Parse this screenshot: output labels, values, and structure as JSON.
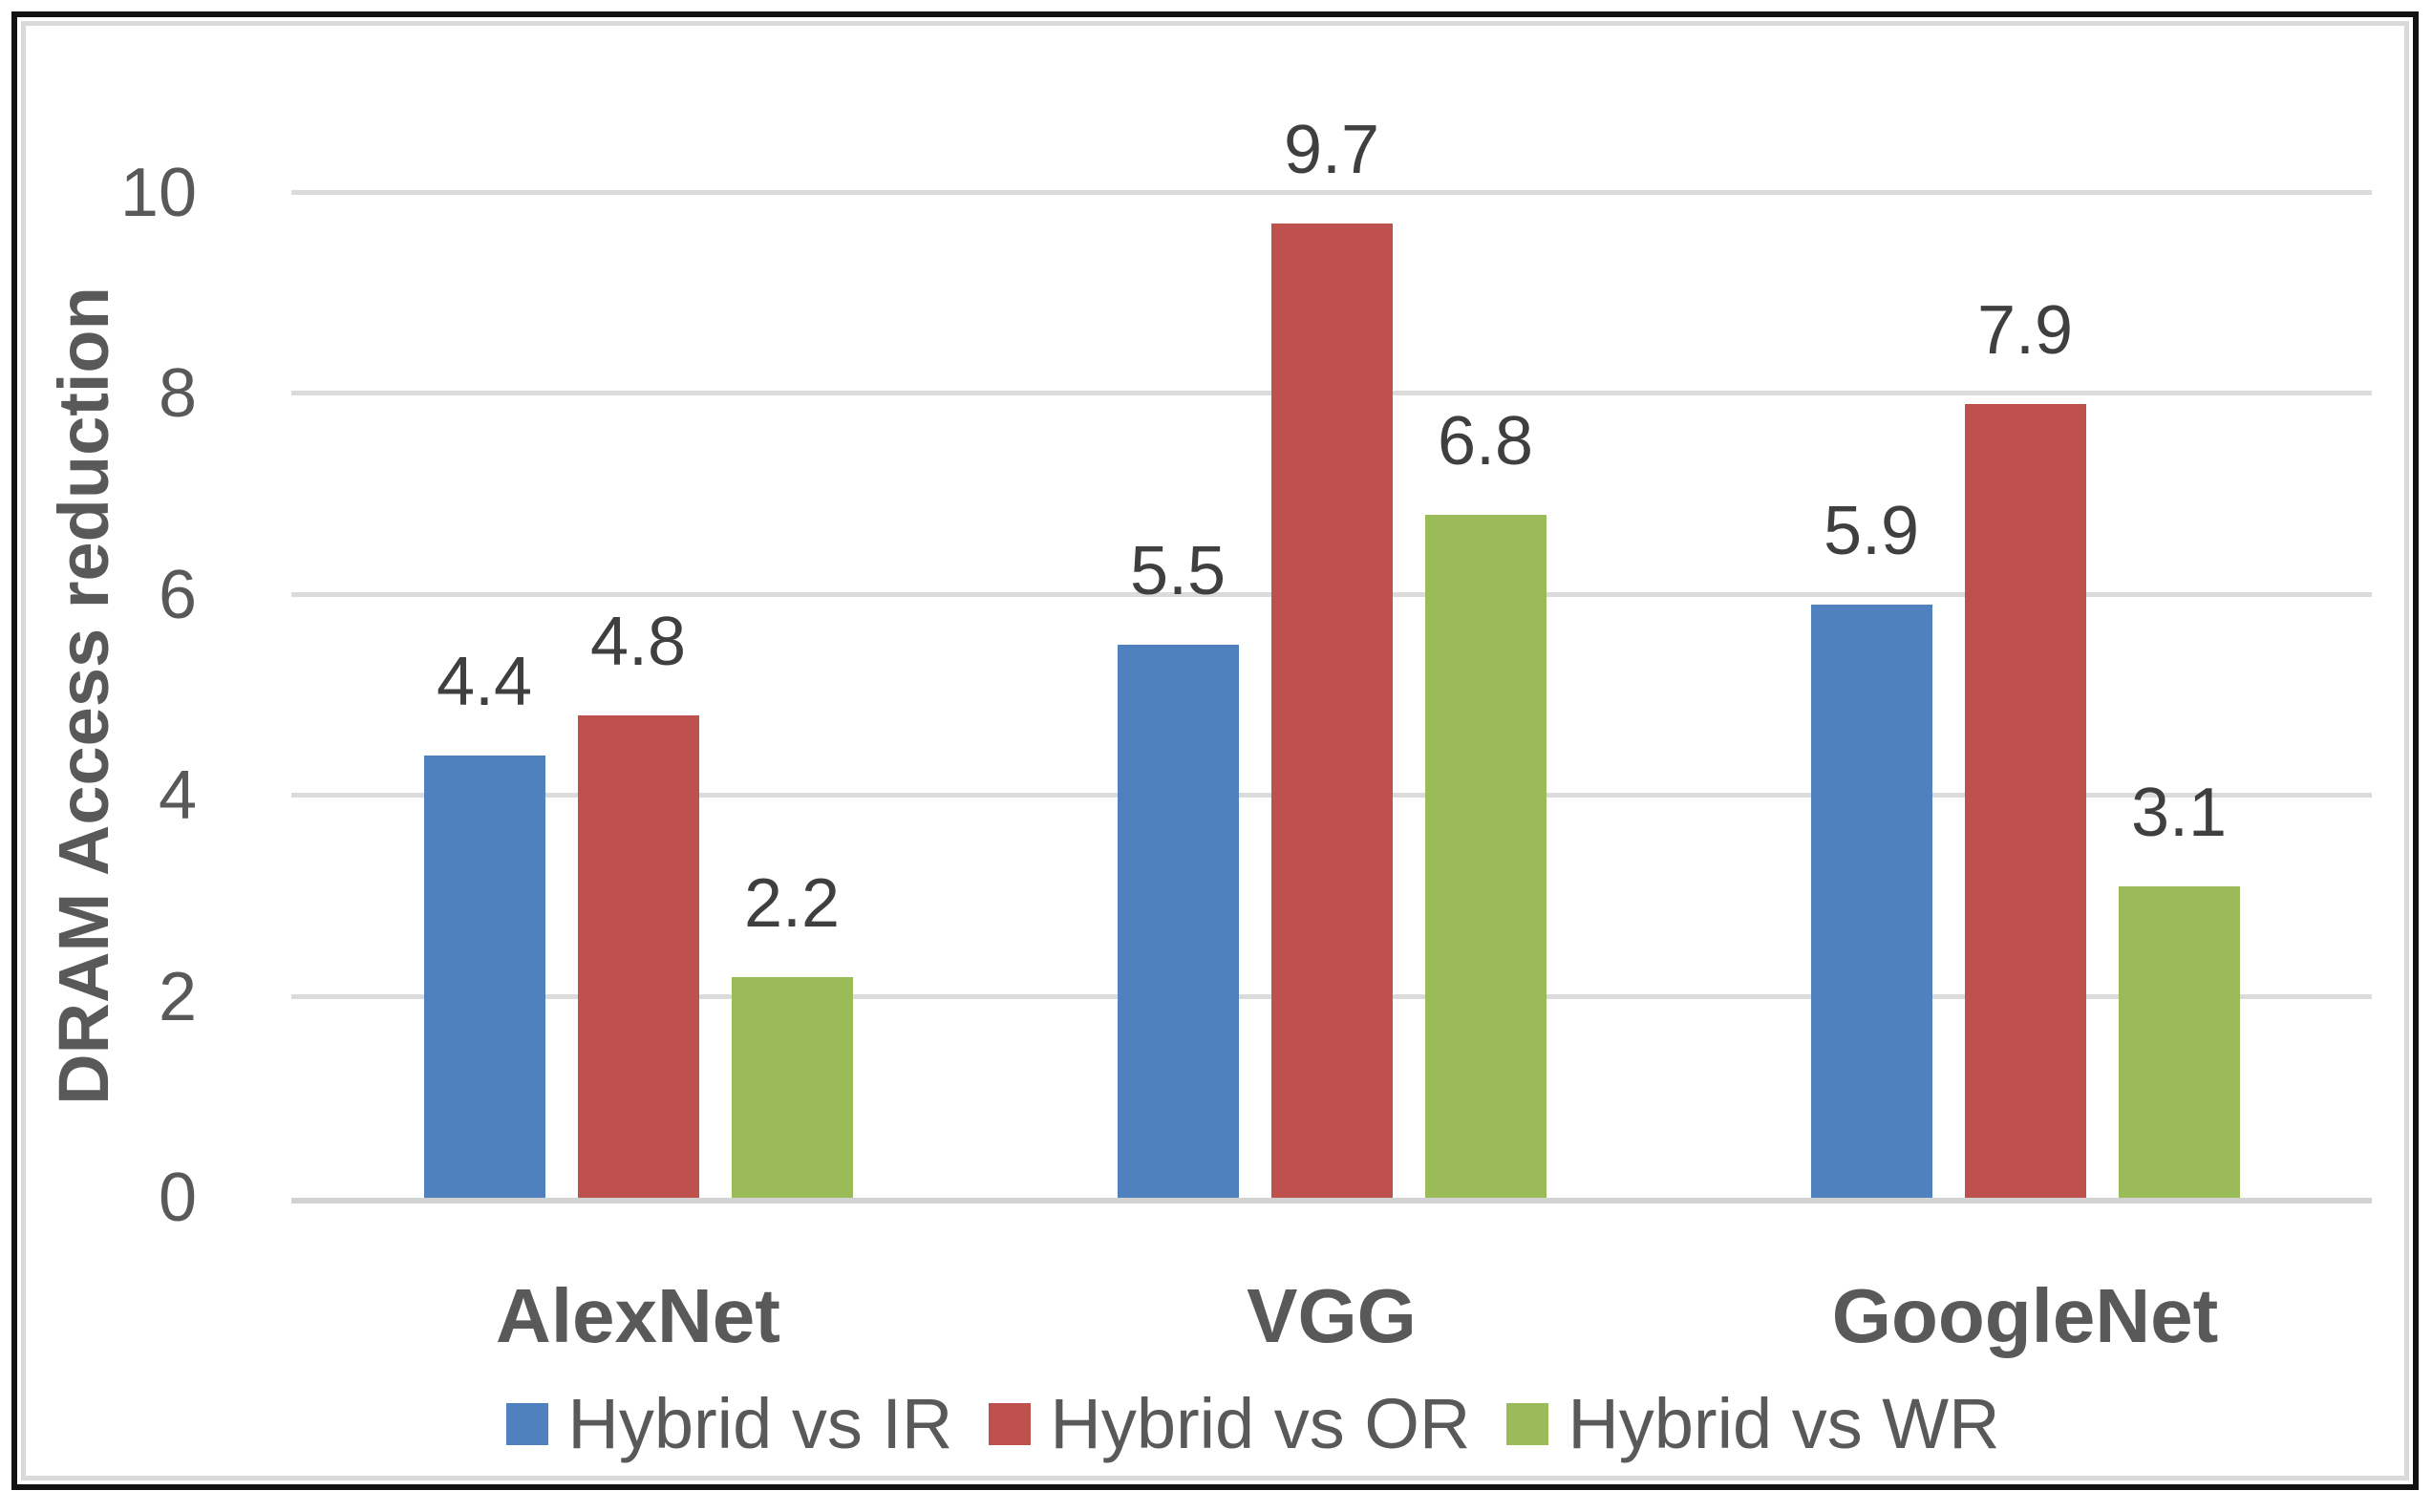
{
  "chart_data": {
    "type": "bar",
    "title": "",
    "xlabel": "",
    "ylabel": "DRAM Access reduction",
    "categories": [
      "AlexNet",
      "VGG",
      "GoogleNet"
    ],
    "series": [
      {
        "name": "Hybrid vs IR",
        "color": "#4E81BD",
        "values": [
          4.4,
          5.5,
          5.9
        ]
      },
      {
        "name": "Hybrid vs OR",
        "color": "#BE504E",
        "values": [
          4.8,
          9.7,
          7.9
        ]
      },
      {
        "name": "Hybrid vs WR",
        "color": "#9ABB57",
        "values": [
          2.2,
          6.8,
          3.1
        ]
      }
    ],
    "ylim": [
      0,
      10
    ],
    "yticks": [
      0,
      2,
      4,
      6,
      8,
      10
    ],
    "grid": true,
    "legend_position": "bottom",
    "colors": {
      "gridline": "#DBDBDB",
      "axis_line": "#D2D2D2",
      "tick_text": "#595959",
      "value_text": "#3F3F3F",
      "category_text": "#595959",
      "legend_text": "#595959",
      "outer_border": "#121212",
      "inner_border": "#D9D9D9"
    }
  }
}
